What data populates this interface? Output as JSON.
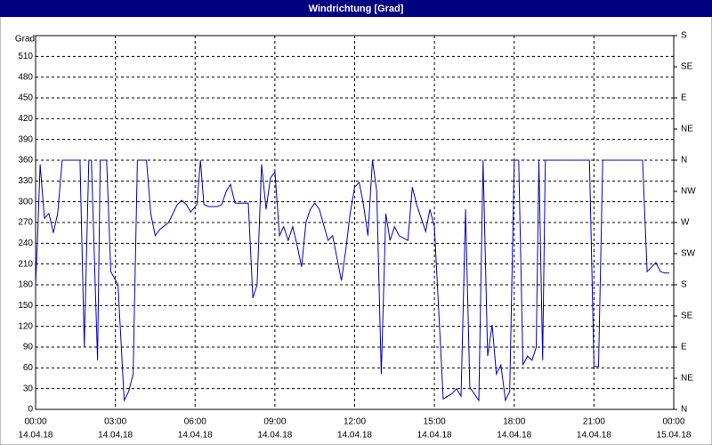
{
  "chart_data": {
    "type": "line",
    "title": "Windrichtung [Grad]",
    "y_label": "Grad",
    "xlim": [
      0,
      24
    ],
    "ylim": [
      0,
      540
    ],
    "y2lim": [
      0,
      540
    ],
    "grid": true,
    "color": "#0000c0",
    "xticks": [
      {
        "value": 0,
        "label": "00:00"
      },
      {
        "value": 3,
        "label": "03:00"
      },
      {
        "value": 6,
        "label": "06:00"
      },
      {
        "value": 9,
        "label": "09:00"
      },
      {
        "value": 12,
        "label": "12:00"
      },
      {
        "value": 15,
        "label": "15:00"
      },
      {
        "value": 18,
        "label": "18:00"
      },
      {
        "value": 21,
        "label": "21:00"
      },
      {
        "value": 24,
        "label": "00:00"
      }
    ],
    "xtick_dates": [
      "14.04.18",
      "14.04.18",
      "14.04.18",
      "14.04.18",
      "14.04.18",
      "14.04.18",
      "14.04.18",
      "14.04.18",
      "15.04.18"
    ],
    "yticks": [
      0,
      30,
      60,
      90,
      120,
      150,
      180,
      210,
      240,
      270,
      300,
      330,
      360,
      390,
      420,
      450,
      480,
      510
    ],
    "y2ticks": [
      {
        "value": 0,
        "label": "N"
      },
      {
        "value": 45,
        "label": "NE"
      },
      {
        "value": 90,
        "label": "E"
      },
      {
        "value": 135,
        "label": "SE"
      },
      {
        "value": 180,
        "label": "S"
      },
      {
        "value": 225,
        "label": "SW"
      },
      {
        "value": 270,
        "label": "W"
      },
      {
        "value": 315,
        "label": "NW"
      },
      {
        "value": 360,
        "label": "N"
      },
      {
        "value": 405,
        "label": "NE"
      },
      {
        "value": 450,
        "label": "E"
      },
      {
        "value": 495,
        "label": "SE"
      },
      {
        "value": 540,
        "label": "S"
      }
    ],
    "x": [
      0,
      0.07,
      0.17,
      0.33,
      0.5,
      0.67,
      0.83,
      1.0,
      1.67,
      1.83,
      2.0,
      2.1,
      2.33,
      2.43,
      2.67,
      2.83,
      3.1,
      3.33,
      3.5,
      3.67,
      3.83,
      4.17,
      4.33,
      4.5,
      4.67,
      5.0,
      5.33,
      5.5,
      5.67,
      5.83,
      6.07,
      6.2,
      6.33,
      6.5,
      6.83,
      7.0,
      7.17,
      7.33,
      7.5,
      8.0,
      8.17,
      8.33,
      8.5,
      8.67,
      8.83,
      9.0,
      9.17,
      9.33,
      9.5,
      9.67,
      9.83,
      10.0,
      10.17,
      10.33,
      10.5,
      10.67,
      11.0,
      11.17,
      11.5,
      11.67,
      11.83,
      12.0,
      12.17,
      12.33,
      12.5,
      12.67,
      12.83,
      13.0,
      13.17,
      13.33,
      13.5,
      13.67,
      14.0,
      14.17,
      14.33,
      14.67,
      14.83,
      15.0,
      15.33,
      15.67,
      15.83,
      16.0,
      16.17,
      16.33,
      16.67,
      16.83,
      17.0,
      17.17,
      17.33,
      17.5,
      17.67,
      17.83,
      18.0,
      18.17,
      18.33,
      18.5,
      18.67,
      18.83,
      18.93,
      19.07,
      19.17,
      20.83,
      21.0,
      21.17,
      21.33,
      22.83,
      23.0,
      23.17,
      23.33,
      23.5,
      23.67,
      23.83
    ],
    "values": [
      180,
      244,
      354,
      276,
      283,
      255,
      283,
      360,
      360,
      90,
      360,
      360,
      71,
      360,
      360,
      199,
      180,
      13,
      26,
      51,
      360,
      360,
      283,
      251,
      260,
      270,
      296,
      302,
      296,
      285,
      296,
      360,
      296,
      293,
      293,
      296,
      315,
      325,
      298,
      298,
      161,
      180,
      354,
      289,
      334,
      343,
      251,
      264,
      244,
      264,
      238,
      206,
      270,
      289,
      298,
      289,
      244,
      251,
      186,
      231,
      283,
      321,
      328,
      296,
      251,
      360,
      315,
      51,
      283,
      244,
      264,
      251,
      244,
      321,
      296,
      257,
      289,
      264,
      15,
      23,
      30,
      19,
      289,
      32,
      13,
      360,
      77,
      122,
      51,
      64,
      13,
      26,
      360,
      360,
      64,
      77,
      71,
      90,
      360,
      71,
      360,
      360,
      62,
      62,
      360,
      360,
      199,
      206,
      212,
      199,
      197,
      197
    ]
  }
}
